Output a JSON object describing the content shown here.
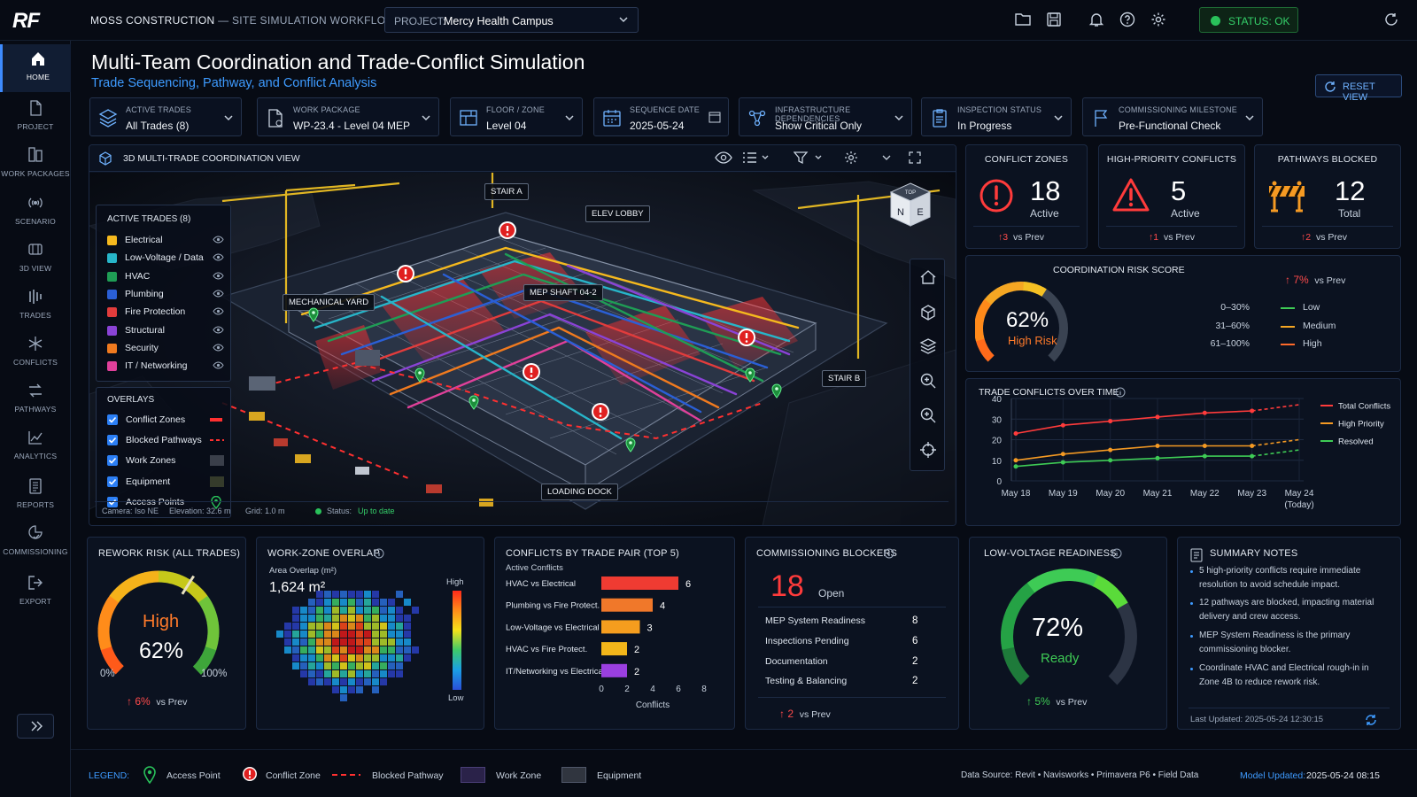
{
  "app": {
    "logo": "RF",
    "title_main": "MOSS CONSTRUCTION",
    "title_rest": " — SITE SIMULATION WORKFLOW",
    "project_label": "PROJECT:",
    "project_value": "Mercy Health Campus",
    "status": "STATUS: OK",
    "colors": {
      "accent": "#3e9bff",
      "ok": "#29c15a",
      "danger": "#ff3b3b",
      "warning": "#f59a23"
    }
  },
  "sidebar": {
    "items": [
      {
        "label": "HOME",
        "icon": "home-icon"
      },
      {
        "label": "PROJECT",
        "icon": "document-icon"
      },
      {
        "label": "WORK PACKAGES",
        "icon": "packages-icon"
      },
      {
        "label": "SCENARIO",
        "icon": "scenario-icon"
      },
      {
        "label": "3D VIEW",
        "icon": "cube-icon"
      },
      {
        "label": "TRADES",
        "icon": "trades-icon"
      },
      {
        "label": "CONFLICTS",
        "icon": "conflicts-icon"
      },
      {
        "label": "PATHWAYS",
        "icon": "pathways-icon"
      },
      {
        "label": "ANALYTICS",
        "icon": "analytics-icon"
      },
      {
        "label": "REPORTS",
        "icon": "reports-icon"
      },
      {
        "label": "COMMISSIONING",
        "icon": "commissioning-icon"
      },
      {
        "label": "EXPORT",
        "icon": "export-icon"
      }
    ]
  },
  "header": {
    "title": "Multi-Team Coordination and Trade-Conflict Simulation",
    "subtitle": "Trade Sequencing, Pathway, and Conflict Analysis",
    "reset": "RESET VIEW"
  },
  "filters": [
    {
      "label": "ACTIVE TRADES",
      "value": "All Trades (8)"
    },
    {
      "label": "WORK PACKAGE",
      "value": "WP-23.4 - Level 04 MEP"
    },
    {
      "label": "FLOOR / ZONE",
      "value": "Level 04"
    },
    {
      "label": "SEQUENCE DATE",
      "value": "2025-05-24"
    },
    {
      "label": "INFRASTRUCTURE DEPENDENCIES",
      "value": "Show Critical Only"
    },
    {
      "label": "INSPECTION STATUS",
      "value": "In Progress"
    },
    {
      "label": "COMMISSIONING MILESTONE",
      "value": "Pre-Functional Check"
    }
  ],
  "view3d": {
    "title": "3D MULTI-TRADE COORDINATION VIEW",
    "trades_title": "ACTIVE TRADES (8)",
    "trades": [
      {
        "name": "Electrical",
        "color": "#f5b91e"
      },
      {
        "name": "Low-Voltage / Data",
        "color": "#27b5c9"
      },
      {
        "name": "HVAC",
        "color": "#1f9d55"
      },
      {
        "name": "Plumbing",
        "color": "#2a5fd6"
      },
      {
        "name": "Fire Protection",
        "color": "#e23c3c"
      },
      {
        "name": "Structural",
        "color": "#8a43d6"
      },
      {
        "name": "Security",
        "color": "#ef7a1f"
      },
      {
        "name": "IT / Networking",
        "color": "#e0409a"
      }
    ],
    "overlays_title": "OVERLAYS",
    "overlays": [
      "Conflict Zones",
      "Blocked Pathways",
      "Work Zones",
      "Equipment",
      "Access Points"
    ],
    "callouts": [
      "STAIR A",
      "ELEV LOBBY",
      "MECHANICAL YARD",
      "MEP SHAFT 04-2",
      "STAIR B",
      "LOADING DOCK"
    ],
    "compass": {
      "top": "TOP",
      "n": "N",
      "e": "E"
    },
    "camera": "Camera: Iso NE",
    "elevation": "Elevation: 32.6 m",
    "grid": "Grid: 1.0 m",
    "status_label": "Status:",
    "status_value": "Up to date"
  },
  "kpis": [
    {
      "title": "CONFLICT ZONES",
      "value": "18",
      "sub": "Active",
      "delta": "3",
      "delta_label": "vs Prev"
    },
    {
      "title": "HIGH-PRIORITY CONFLICTS",
      "value": "5",
      "sub": "Active",
      "delta": "1",
      "delta_label": "vs Prev"
    },
    {
      "title": "PATHWAYS BLOCKED",
      "value": "12",
      "sub": "Total",
      "delta": "2",
      "delta_label": "vs Prev"
    }
  ],
  "risk": {
    "title": "COORDINATION  RISK SCORE",
    "value": "62%",
    "level": "High Risk",
    "percent": 62,
    "delta": "7%",
    "delta_label": "vs Prev",
    "bands": [
      {
        "range": "0–30%",
        "label": "Low",
        "color": "#3ecb55"
      },
      {
        "range": "31–60%",
        "label": "Medium",
        "color": "#f5a623"
      },
      {
        "range": "61–100%",
        "label": "High",
        "color": "#ff6a2a"
      }
    ]
  },
  "chart_data": {
    "type": "line",
    "title": "TRADE CONFLICTS OVER TIME",
    "x": [
      "May 18",
      "May 19",
      "May 20",
      "May 21",
      "May 22",
      "May 23",
      "May 24"
    ],
    "x_note": "(Today)",
    "ylim": [
      0,
      40
    ],
    "yticks": [
      0,
      10,
      20,
      30,
      40
    ],
    "series": [
      {
        "name": "Total Conflicts",
        "color": "#ff3b3b",
        "values": [
          23,
          27,
          29,
          31,
          33,
          34,
          37
        ]
      },
      {
        "name": "High Priority",
        "color": "#f59a23",
        "values": [
          10,
          13,
          15,
          17,
          17,
          17,
          20
        ]
      },
      {
        "name": "Resolved",
        "color": "#3ecb55",
        "values": [
          7,
          9,
          10,
          11,
          12,
          12,
          15
        ]
      }
    ],
    "forecast_from_index": 5,
    "legend": "right",
    "grid": true
  },
  "rework": {
    "title": "REWORK RISK (ALL TRADES)",
    "level": "High",
    "value": "62%",
    "percent": 62,
    "min": "0%",
    "max": "100%",
    "delta": "6%",
    "delta_label": "vs Prev"
  },
  "overlap": {
    "title": "WORK-ZONE OVERLAP",
    "sub": "Area Overlap (m²)",
    "value": "1,624 m²",
    "high": "High",
    "low": "Low"
  },
  "trade_pairs": {
    "title": "CONFLICTS BY TRADE PAIR  (TOP 5)",
    "sub": "Active Conflicts",
    "xlabel": "Conflicts",
    "xticks": [
      0,
      2,
      4,
      6,
      8
    ],
    "items": [
      {
        "label": "HVAC vs Electrical",
        "value": 6,
        "color": "#ef3b32"
      },
      {
        "label": "Plumbing vs Fire Protect.",
        "value": 4,
        "color": "#f0782a"
      },
      {
        "label": "Low-Voltage vs Electrical",
        "value": 3,
        "color": "#f59d1e"
      },
      {
        "label": "HVAC vs Fire Protect.",
        "value": 2,
        "color": "#f2b61a"
      },
      {
        "label": "IT/Networking vs Electrical",
        "value": 2,
        "color": "#9a3fe0"
      }
    ]
  },
  "blockers": {
    "title": "COMMISSIONING BLOCKERS",
    "value": "18",
    "sub": "Open",
    "rows": [
      {
        "label": "MEP System Readiness",
        "value": "8"
      },
      {
        "label": "Inspections Pending",
        "value": "6"
      },
      {
        "label": "Documentation",
        "value": "2"
      },
      {
        "label": "Testing & Balancing",
        "value": "2"
      }
    ],
    "delta": "2",
    "delta_label": "vs Prev"
  },
  "lv": {
    "title": "LOW-VOLTAGE READINESS",
    "value": "72%",
    "percent": 72,
    "label": "Ready",
    "delta": "5%",
    "delta_label": "vs Prev"
  },
  "notes": {
    "title": "SUMMARY NOTES",
    "items": [
      "5 high-priority conflicts require immediate",
      "resolution to avoid schedule impact.",
      "12 pathways are blocked, impacting material",
      "delivery and crew access.",
      "MEP System Readiness is the primary",
      "commissioning blocker.",
      "Coordinate HVAC and Electrical rough-in in",
      "Zone 4B to reduce rework risk."
    ],
    "updated": "Last Updated:  2025-05-24 12:30:15"
  },
  "legend": {
    "label": "LEGEND:",
    "items": [
      "Access Point",
      "Conflict Zone",
      "Blocked Pathway",
      "Work Zone",
      "Equipment"
    ],
    "source": "Data Source:  Revit  •  Navisworks  •  Primavera P6  •  Field Data",
    "updated_label": "Model Updated:",
    "updated_value": "2025-05-24  08:15"
  }
}
